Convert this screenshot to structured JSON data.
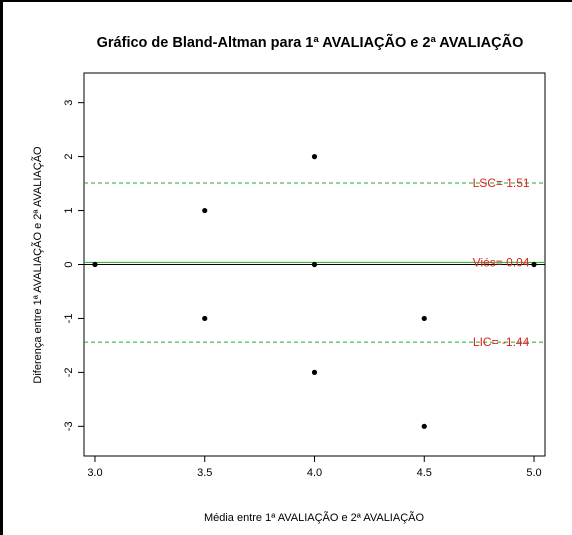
{
  "chart_data": {
    "type": "scatter",
    "title": "Gráfico de Bland-Altman para 1ª AVALIAÇÃO e 2ª AVALIAÇÃO",
    "xlabel": "Média entre 1ª AVALIAÇÃO e 2ª AVALIAÇÃO",
    "ylabel": "Diferença entre 1ª AVALIAÇÃO e 2ª AVALIAÇÃO",
    "xlim": [
      2.95,
      5.05
    ],
    "ylim": [
      -3.55,
      3.55
    ],
    "xticks": [
      3.0,
      3.5,
      4.0,
      4.5,
      5.0
    ],
    "xtick_labels": [
      "3.0",
      "3.5",
      "4.0",
      "4.5",
      "5.0"
    ],
    "yticks": [
      -3,
      -2,
      -1,
      0,
      1,
      2,
      3
    ],
    "ytick_labels": [
      "-3",
      "-2",
      "-1",
      "0",
      "1",
      "2",
      "3"
    ],
    "points": [
      {
        "x": 3.0,
        "y": 0
      },
      {
        "x": 3.5,
        "y": 1
      },
      {
        "x": 3.5,
        "y": -1
      },
      {
        "x": 4.0,
        "y": 2
      },
      {
        "x": 4.0,
        "y": 0
      },
      {
        "x": 4.0,
        "y": -2
      },
      {
        "x": 4.5,
        "y": -1
      },
      {
        "x": 4.5,
        "y": -3
      },
      {
        "x": 5.0,
        "y": 0
      }
    ],
    "reference_lines": [
      {
        "name": "zero",
        "y": 0,
        "color": "#000000",
        "style": "solid"
      },
      {
        "name": "vies",
        "y": 0.04,
        "color": "#22aa22",
        "style": "solid",
        "label": "Viés= 0.04",
        "label_x": 4.85
      },
      {
        "name": "lsc",
        "y": 1.51,
        "color": "#22aa22",
        "style": "dashed",
        "label": "LSC= 1.51",
        "label_x": 4.85
      },
      {
        "name": "lic",
        "y": -1.44,
        "color": "#22aa22",
        "style": "dashed",
        "label": "LIC= -1.44",
        "label_x": 4.85
      }
    ],
    "label_color": "#dd2222",
    "grid": false,
    "legend": "none"
  }
}
